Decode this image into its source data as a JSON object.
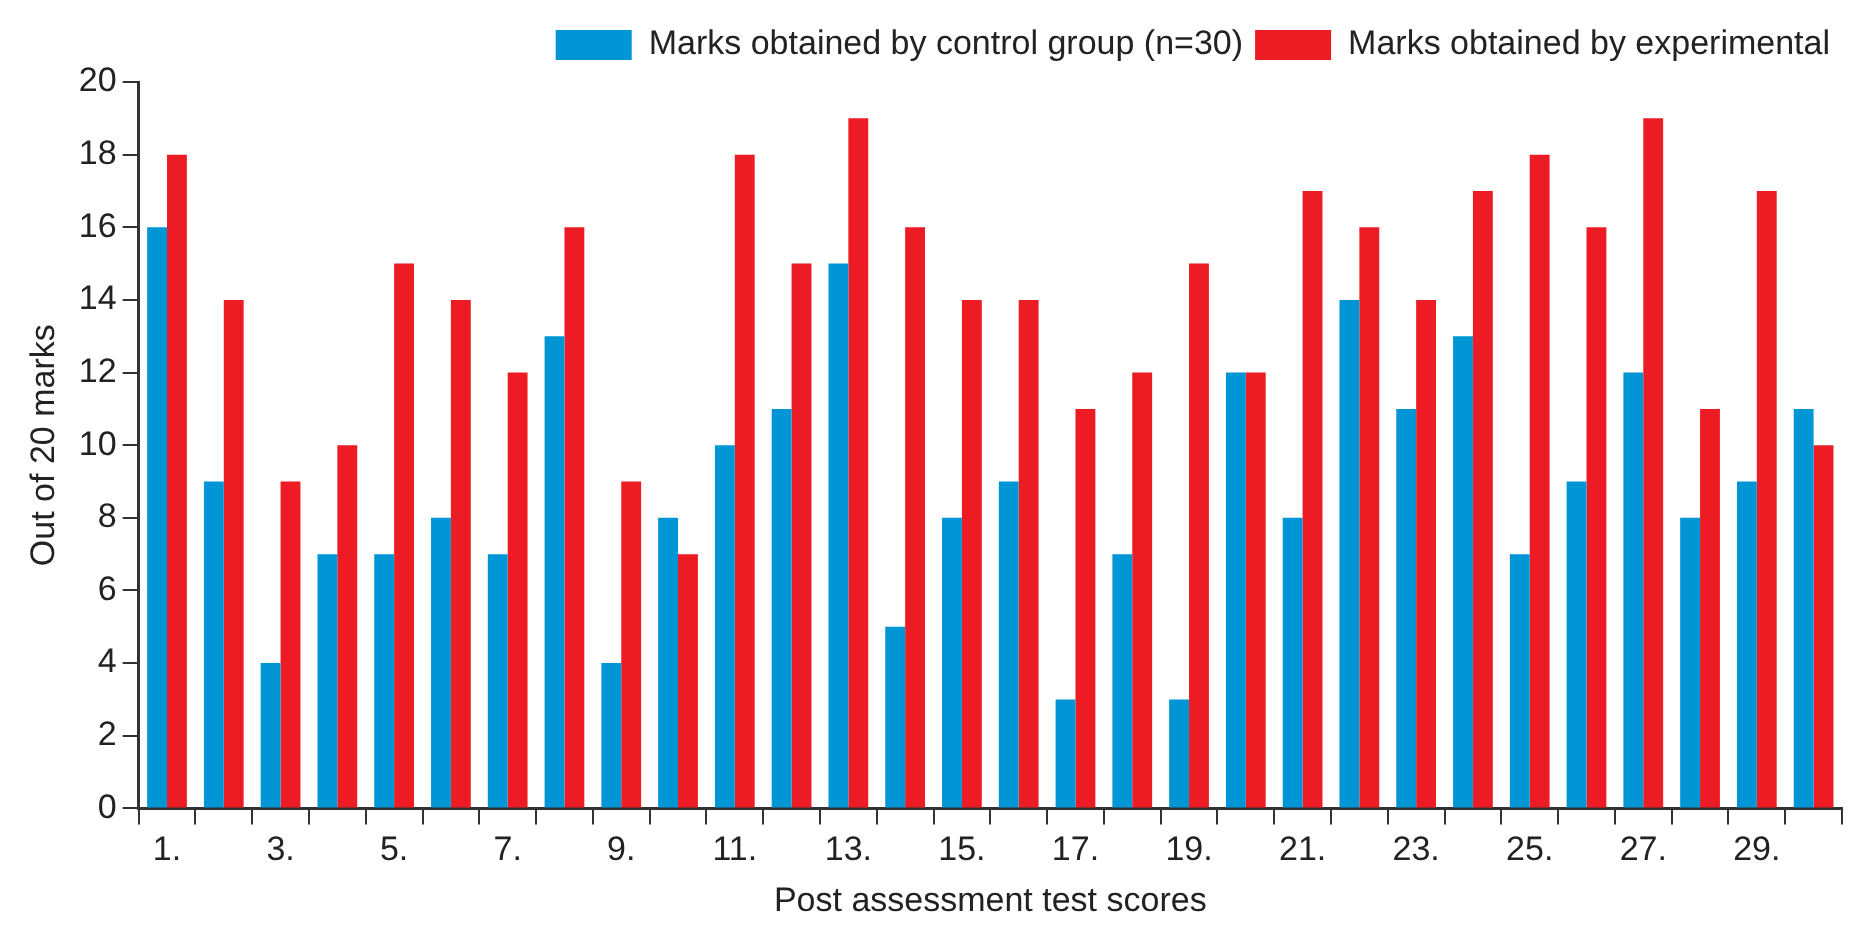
{
  "chart_data": {
    "type": "bar",
    "xlabel": "Post assessment test scores",
    "ylabel": "Out of 20 marks",
    "categories": [
      "1.",
      null,
      "3.",
      null,
      "5.",
      null,
      "7.",
      null,
      "9.",
      null,
      "11.",
      null,
      "13.",
      null,
      "15.",
      null,
      "17.",
      null,
      "19.",
      null,
      "21.",
      null,
      "23.",
      null,
      "25.",
      null,
      "27.",
      null,
      "29.",
      null
    ],
    "series": [
      {
        "name": "Marks obtained by control group (n=30)",
        "color": "#0096d6",
        "values": [
          16,
          9,
          4,
          7,
          7,
          8,
          7,
          13,
          4,
          8,
          10,
          11,
          15,
          5,
          8,
          9,
          3,
          7,
          3,
          12,
          8,
          14,
          11,
          13,
          7,
          9,
          12,
          8,
          9,
          11
        ]
      },
      {
        "name": "Marks obtained by experimental",
        "color": "#ed1c24",
        "values": [
          18,
          14,
          9,
          10,
          15,
          14,
          12,
          16,
          9,
          7,
          18,
          15,
          19,
          16,
          14,
          14,
          11,
          12,
          15,
          12,
          17,
          16,
          14,
          17,
          18,
          16,
          19,
          11,
          17,
          10
        ]
      }
    ],
    "ylim": [
      0,
      20
    ],
    "yticks": [
      0,
      2,
      4,
      6,
      8,
      10,
      12,
      14,
      16,
      18,
      20
    ],
    "grid": false,
    "legend": "top right"
  }
}
